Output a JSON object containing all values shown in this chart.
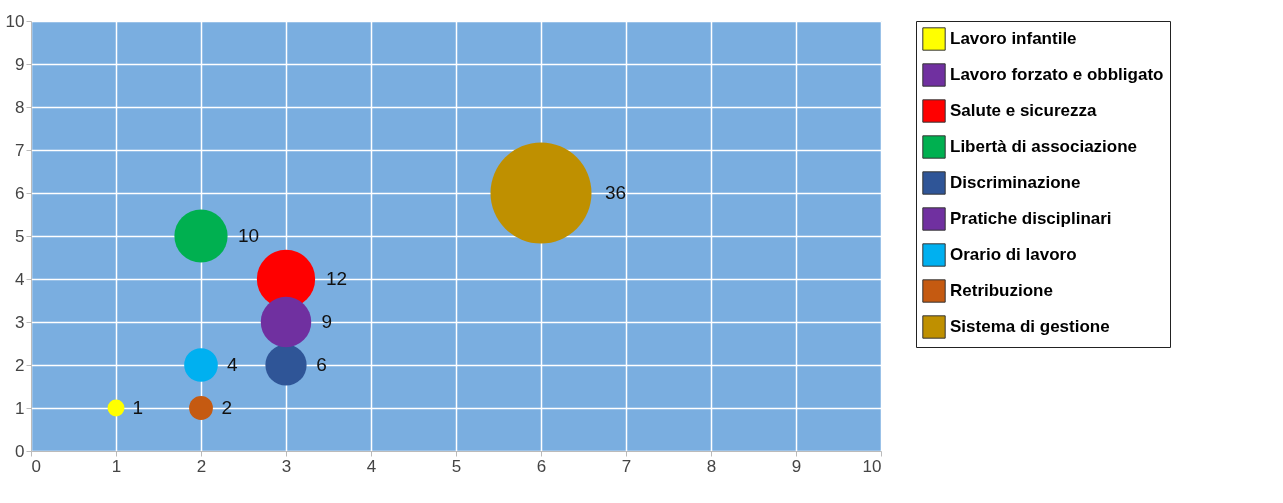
{
  "chart_data": {
    "type": "bubble",
    "xlim": [
      0,
      10
    ],
    "ylim": [
      0,
      10
    ],
    "xticks": [
      0,
      1,
      2,
      3,
      4,
      5,
      6,
      7,
      8,
      9,
      10
    ],
    "yticks": [
      0,
      1,
      2,
      3,
      4,
      5,
      6,
      7,
      8,
      9,
      10
    ],
    "grid": true,
    "legend": "right",
    "series": [
      {
        "name": "Lavoro infantile",
        "color": "#ffff00",
        "x": [
          1
        ],
        "values": [
          1
        ],
        "sizes": [
          1
        ],
        "value_labels": [
          "1"
        ]
      },
      {
        "name": "Lavoro forzato e obbligato",
        "color": "#7030a0"
      },
      {
        "name": "Salute e sicurezza",
        "color": "#ff0000",
        "x": [
          3
        ],
        "values": [
          4
        ],
        "sizes": [
          12
        ],
        "value_labels": [
          "12"
        ]
      },
      {
        "name": "Libertà di associazione",
        "color": "#00b050",
        "x": [
          2
        ],
        "values": [
          5
        ],
        "sizes": [
          10
        ],
        "value_labels": [
          "10"
        ]
      },
      {
        "name": "Discriminazione",
        "color": "#2f5597",
        "x": [
          3
        ],
        "values": [
          2
        ],
        "sizes": [
          6
        ],
        "value_labels": [
          "6"
        ]
      },
      {
        "name": "Pratiche disciplinari",
        "color": "#7030a0",
        "x": [
          3
        ],
        "values": [
          3
        ],
        "sizes": [
          9
        ],
        "value_labels": [
          "9"
        ]
      },
      {
        "name": "Orario di lavoro",
        "color": "#00b0f0",
        "x": [
          2
        ],
        "values": [
          2
        ],
        "sizes": [
          4
        ],
        "value_labels": [
          "4"
        ]
      },
      {
        "name": "Retribuzione",
        "color": "#c55a11",
        "x": [
          2
        ],
        "values": [
          1
        ],
        "sizes": [
          2
        ],
        "value_labels": [
          "2"
        ]
      },
      {
        "name": "Sistema di gestione",
        "color": "#bf9000",
        "x": [
          6
        ],
        "values": [
          6
        ],
        "sizes": [
          36
        ],
        "value_labels": [
          "36"
        ]
      }
    ]
  }
}
